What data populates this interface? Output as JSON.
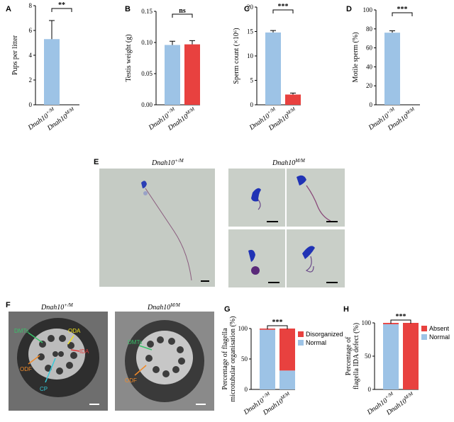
{
  "panels": {
    "A": {
      "letter": "A"
    },
    "B": {
      "letter": "B"
    },
    "C": {
      "letter": "C"
    },
    "D": {
      "letter": "D"
    },
    "E": {
      "letter": "E"
    },
    "F": {
      "letter": "F"
    },
    "G": {
      "letter": "G"
    },
    "H": {
      "letter": "H"
    }
  },
  "colors": {
    "wt": "#9dc3e6",
    "mut": "#e8413f",
    "grid": "#000000"
  },
  "microscopy": {
    "E_wt_title": "Dnah10",
    "E_wt_sup": "+/M",
    "E_mut_title": "Dnah10",
    "E_mut_sup": "M/M",
    "F_wt_title": "Dnah10",
    "F_wt_sup": "+/M",
    "F_mut_title": "Dnah10",
    "F_mut_sup": "M/M",
    "F_wt_labels": [
      "DMTs",
      "ODA",
      "IDA",
      "ODF",
      "CP"
    ],
    "F_mut_labels": [
      "DMTs",
      "ODF"
    ]
  },
  "chart_data": [
    {
      "id": "A",
      "type": "bar",
      "categories": [
        "Dnah10+/M",
        "Dnah10M/M"
      ],
      "values": [
        5.3,
        0
      ],
      "errors": [
        1.5,
        0
      ],
      "ylabel": "Pups per litter",
      "ylim": [
        0,
        8
      ],
      "yticks": [
        0,
        2,
        4,
        6,
        8
      ],
      "significance": "**"
    },
    {
      "id": "B",
      "type": "bar",
      "categories": [
        "Dnah10+/M",
        "Dnah10M/M"
      ],
      "values": [
        0.096,
        0.097
      ],
      "errors": [
        0.006,
        0.006
      ],
      "ylabel": "Testis weight (g)",
      "ylim": [
        0,
        0.15
      ],
      "yticks": [
        "0.00",
        "0.05",
        "0.10",
        "0.15"
      ],
      "significance": "ns"
    },
    {
      "id": "C",
      "type": "bar",
      "categories": [
        "Dnah10+/M",
        "Dnah10M/M"
      ],
      "values": [
        14.8,
        2.1
      ],
      "errors": [
        0.4,
        0.3
      ],
      "ylabel": "Sperm count (×10⁶)",
      "ylim": [
        0,
        20
      ],
      "yticks": [
        0,
        5,
        10,
        15,
        20
      ],
      "significance": "***"
    },
    {
      "id": "D",
      "type": "bar",
      "categories": [
        "Dnah10+/M",
        "Dnah10M/M"
      ],
      "values": [
        76,
        0
      ],
      "errors": [
        2,
        0
      ],
      "ylabel": "Motile sperm (%)",
      "ylim": [
        0,
        100
      ],
      "yticks": [
        0,
        20,
        40,
        60,
        80,
        100
      ],
      "significance": "***"
    },
    {
      "id": "G",
      "type": "bar",
      "stacked": true,
      "categories": [
        "Dnah10+/M",
        "Dnah10M/M"
      ],
      "series": [
        {
          "name": "Normal",
          "values": [
            98,
            31
          ]
        },
        {
          "name": "Disorganized",
          "values": [
            2,
            69
          ]
        }
      ],
      "ylabel": "Percentage of flagella microtubular organisation (%)",
      "ylabel_lines": [
        "Percentage of flagella",
        "microtubular organisation (%)"
      ],
      "ylim": [
        0,
        100
      ],
      "yticks": [
        0,
        50,
        100
      ],
      "significance": "***"
    },
    {
      "id": "H",
      "type": "bar",
      "stacked": true,
      "categories": [
        "Dnah10+/M",
        "Dnah10M/M"
      ],
      "series": [
        {
          "name": "Normal",
          "values": [
            98,
            0
          ]
        },
        {
          "name": "Absent",
          "values": [
            2,
            100
          ]
        }
      ],
      "ylabel": "Percentage of flagella IDA defect (%)",
      "ylabel_lines": [
        "Percentage of",
        "flagella IDA defect (%)"
      ],
      "ylim": [
        0,
        100
      ],
      "yticks": [
        0,
        50,
        100
      ],
      "significance": "***"
    }
  ]
}
